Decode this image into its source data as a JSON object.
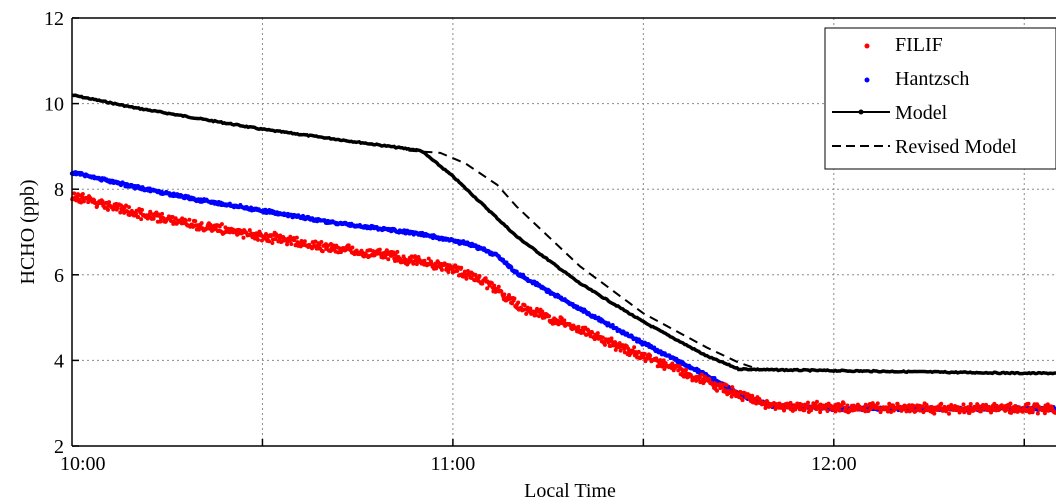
{
  "chart_data": {
    "type": "line",
    "xlabel": "Local Time",
    "ylabel": "HCHO (ppb)",
    "xlim": [
      "10:00",
      "12:35"
    ],
    "ylim": [
      2,
      12
    ],
    "x_ticks": [
      "10:00",
      "11:00",
      "12:00"
    ],
    "y_ticks": [
      2,
      4,
      6,
      8,
      10,
      12
    ],
    "x_grid_minutes": [
      30,
      60,
      90,
      120,
      150
    ],
    "grid": true,
    "legend_position": "top-right",
    "series": [
      {
        "name": "FILIF",
        "style": "dots",
        "color": "#ff0000",
        "x": [
          0,
          10,
          20,
          30,
          40,
          50,
          55,
          60,
          65,
          70,
          80,
          90,
          100,
          105,
          110,
          120,
          130,
          140,
          150,
          155
        ],
        "y": [
          7.85,
          7.45,
          7.15,
          6.9,
          6.65,
          6.45,
          6.3,
          6.15,
          5.85,
          5.3,
          4.7,
          4.1,
          3.5,
          3.2,
          2.95,
          2.9,
          2.88,
          2.87,
          2.87,
          2.87
        ]
      },
      {
        "name": "Hantzsch",
        "style": "dots",
        "color": "#0000ff",
        "x": [
          0,
          10,
          20,
          30,
          40,
          50,
          55,
          60,
          63,
          67,
          70,
          80,
          90,
          100,
          105,
          110,
          120,
          130,
          140,
          150,
          155
        ],
        "y": [
          8.4,
          8.05,
          7.75,
          7.5,
          7.25,
          7.05,
          6.95,
          6.8,
          6.7,
          6.45,
          6.05,
          5.2,
          4.4,
          3.65,
          3.2,
          2.95,
          2.88,
          2.87,
          2.87,
          2.87,
          2.87
        ]
      },
      {
        "name": "Model",
        "style": "line-dots",
        "color": "#000000",
        "x": [
          0,
          10,
          20,
          30,
          40,
          50,
          55,
          60,
          70,
          80,
          90,
          100,
          105,
          110,
          120,
          130,
          140,
          150,
          155
        ],
        "y": [
          10.2,
          9.9,
          9.65,
          9.4,
          9.2,
          9.0,
          8.9,
          8.3,
          6.9,
          5.8,
          4.9,
          4.1,
          3.8,
          3.78,
          3.76,
          3.74,
          3.72,
          3.7,
          3.7
        ]
      },
      {
        "name": "Revised Model",
        "style": "dashed",
        "color": "#000000",
        "x": [
          53,
          58,
          62,
          67,
          70,
          80,
          90,
          100,
          105,
          108
        ],
        "y": [
          8.9,
          8.85,
          8.6,
          8.1,
          7.6,
          6.2,
          5.1,
          4.3,
          3.95,
          3.8
        ]
      }
    ]
  }
}
